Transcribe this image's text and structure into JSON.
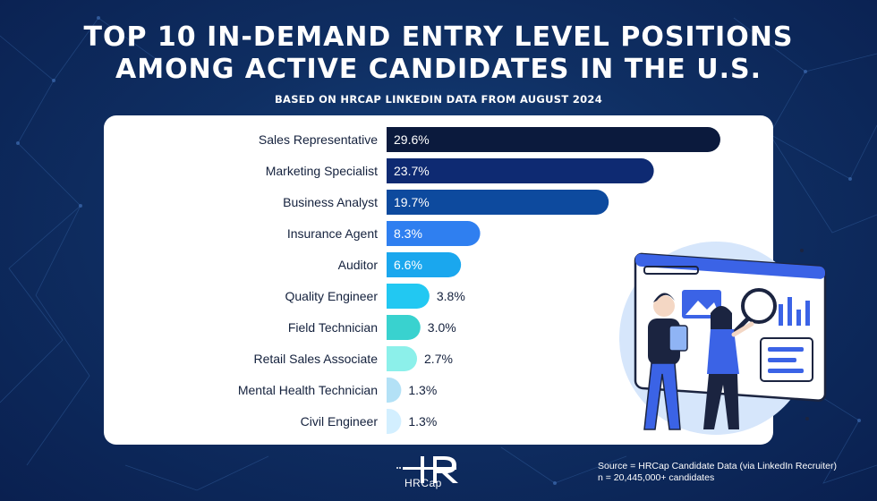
{
  "header": {
    "title_line1": "TOP 10 IN-DEMAND ENTRY LEVEL POSITIONS",
    "title_line2": "AMONG ACTIVE CANDIDATES IN THE U.S.",
    "subtitle": "BASED ON HRCAP LINKEDIN DATA FROM AUGUST 2024"
  },
  "chart_data": {
    "type": "bar",
    "orientation": "horizontal",
    "title": "TOP 10 IN-DEMAND ENTRY LEVEL POSITIONS AMONG ACTIVE CANDIDATES IN THE U.S.",
    "xlabel": "",
    "ylabel": "",
    "xlim": [
      0,
      30
    ],
    "grid": false,
    "categories": [
      "Sales Representative",
      "Marketing Specialist",
      "Business Analyst",
      "Insurance Agent",
      "Auditor",
      "Quality Engineer",
      "Field Technician",
      "Retail Sales Associate",
      "Mental Health Technician",
      "Civil Engineer"
    ],
    "values": [
      29.6,
      23.7,
      19.7,
      8.3,
      6.6,
      3.8,
      3.0,
      2.7,
      1.3,
      1.3
    ],
    "value_labels": [
      "29.6%",
      "23.7%",
      "19.7%",
      "8.3%",
      "6.6%",
      "3.8%",
      "3.0%",
      "2.7%",
      "1.3%",
      "1.3%"
    ],
    "colors": [
      "#0b1a3d",
      "#0e2a72",
      "#0d4a9e",
      "#2f7ff0",
      "#1aa7ee",
      "#22c8f2",
      "#39d2cf",
      "#8cf0ea",
      "#b3e1f6",
      "#d3efff"
    ]
  },
  "footer": {
    "logo_text": "HRCap",
    "source_line1": "Source = HRCap Candidate Data  (via LinkedIn Recruiter)",
    "source_line2": "n = 20,445,000+ candidates"
  }
}
